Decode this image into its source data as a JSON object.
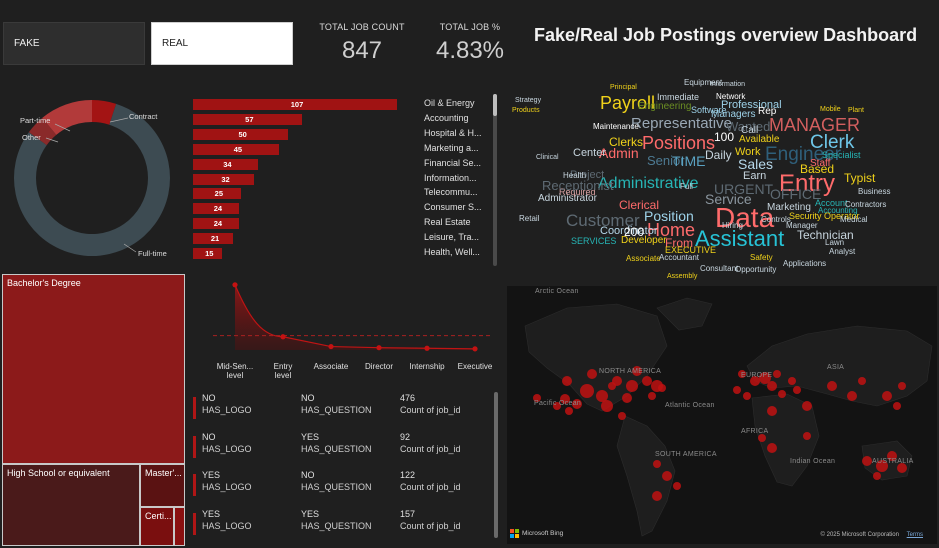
{
  "slicer": {
    "fake_label": "FAKE",
    "real_label": "REAL"
  },
  "kpis": {
    "count_title": "TOTAL JOB COUNT",
    "count_value": "847",
    "pct_title": "TOTAL JOB %",
    "pct_value": "4.83%"
  },
  "title": "Fake/Real Job Postings overview Dashboard",
  "donut": {
    "labels": {
      "part_time": "Part-time",
      "contract": "Contract",
      "other": "Other",
      "full_time": "Full-time"
    },
    "colors": {
      "full_time": "#3d4b52",
      "part_time": "#b23a3a",
      "contract": "#a31414",
      "other": "#8a2a2a"
    }
  },
  "industry_chart": {
    "chart_data": {
      "type": "bar",
      "categories": [
        "Oil & Energy",
        "Accounting",
        "Hospital & H...",
        "Marketing a...",
        "Financial Se...",
        "Information...",
        "Telecommu...",
        "Consumer S...",
        "Real Estate",
        "Leisure, Tra...",
        "Health, Well..."
      ],
      "values": [
        107,
        57,
        50,
        45,
        34,
        32,
        25,
        24,
        24,
        21,
        15
      ],
      "value_labels": [
        "107",
        "57",
        "50",
        "45",
        "34",
        "32",
        "25",
        "24",
        "24",
        "21",
        "15"
      ],
      "xlim": [
        0,
        107
      ]
    }
  },
  "treemap": {
    "bachelors": "Bachelor's Degree",
    "high_school": "High School or equivalent",
    "masters": "Master'...",
    "certification": "Certi..."
  },
  "experience_chart": {
    "chart_data": {
      "type": "area",
      "categories": [
        "Mid-Senior level",
        "Entry level",
        "Associate",
        "Director",
        "Internship",
        "Executive"
      ],
      "tick_labels": [
        "Mid-Sen...\nlevel",
        "Entry\nlevel",
        "Associate",
        "Director",
        "Internship",
        "Executive"
      ],
      "values": [
        113,
        23,
        6,
        4,
        3,
        2
      ],
      "ylim": [
        0,
        130
      ],
      "average_line": 25
    }
  },
  "logo_question_cards": [
    {
      "logo": "NO",
      "logo_caption": "HAS_LOGO",
      "question": "NO",
      "question_caption": "HAS_QUESTION",
      "count": "476",
      "count_caption": "Count of job_id"
    },
    {
      "logo": "NO",
      "logo_caption": "HAS_LOGO",
      "question": "YES",
      "question_caption": "HAS_QUESTION",
      "count": "92",
      "count_caption": "Count of job_id"
    },
    {
      "logo": "YES",
      "logo_caption": "HAS_LOGO",
      "question": "NO",
      "question_caption": "HAS_QUESTION",
      "count": "122",
      "count_caption": "Count of job_id"
    },
    {
      "logo": "YES",
      "logo_caption": "HAS_LOGO",
      "question": "YES",
      "question_caption": "HAS_QUESTION",
      "count": "157",
      "count_caption": "Count of job_id"
    }
  ],
  "wordcloud": [
    {
      "t": "Payroll",
      "c": "#f0d21a"
    },
    {
      "t": "Positions",
      "c": "#ff6b6b"
    },
    {
      "t": "Representative",
      "c": "#9aa8b5"
    },
    {
      "t": "MANAGER",
      "c": "#d35f5f"
    },
    {
      "t": "Clerk",
      "c": "#6ec6e8"
    },
    {
      "t": "Engineer",
      "c": "#2f5f7a"
    },
    {
      "t": "Entry",
      "c": "#ff6b6b"
    },
    {
      "t": "Administrative",
      "c": "#27b5b5"
    },
    {
      "t": "Data",
      "c": "#ff6b6b"
    },
    {
      "t": "Assistant",
      "c": "#27c3d6"
    },
    {
      "t": "Customer",
      "c": "#5e6a73"
    },
    {
      "t": "Home",
      "c": "#ff6b6b"
    },
    {
      "t": "Position",
      "c": "#9ed3ea"
    },
    {
      "t": "Service",
      "c": "#8a959e"
    },
    {
      "t": "Sales",
      "c": "#b7d8ea"
    },
    {
      "t": "Admin",
      "c": "#ff6b6b"
    },
    {
      "t": "Senior",
      "c": "#4d7a92"
    },
    {
      "t": "TIME",
      "c": "#5aa2c2"
    },
    {
      "t": "Clerks",
      "c": "#f0d21a"
    },
    {
      "t": "Daily",
      "c": "#c8d6df"
    },
    {
      "t": "Work",
      "c": "#f0d21a"
    },
    {
      "t": "Based",
      "c": "#f0d21a"
    },
    {
      "t": "Typist",
      "c": "#f0d21a"
    },
    {
      "t": "Earn",
      "c": "#c8d6df"
    },
    {
      "t": "Clerical",
      "c": "#ff6b6b"
    },
    {
      "t": "Technician",
      "c": "#c8d6df"
    },
    {
      "t": "Coordinator",
      "c": "#b7d8ea"
    },
    {
      "t": "200",
      "c": "#ffffff"
    },
    {
      "t": "Developer",
      "c": "#f0d21a"
    },
    {
      "t": "From",
      "c": "#ff6b6b"
    },
    {
      "t": "Administrator",
      "c": "#c8d6df"
    },
    {
      "t": "Marketing",
      "c": "#c8d6df"
    },
    {
      "t": "Account",
      "c": "#27b5b5"
    },
    {
      "t": "Security Operator",
      "c": "#f0d21a"
    },
    {
      "t": "Engineering",
      "c": "#6b8e23"
    },
    {
      "t": "Managers",
      "c": "#9ed3ea"
    },
    {
      "t": "Available",
      "c": "#f0d21a"
    },
    {
      "t": "Network",
      "c": "#ffffff"
    },
    {
      "t": "Professional",
      "c": "#9ed3ea"
    },
    {
      "t": "Wanted",
      "c": "#5e6a73"
    },
    {
      "t": "URGENT",
      "c": "#5e6a73"
    },
    {
      "t": "OFFICE",
      "c": "#5e6a73"
    },
    {
      "t": "Specialist",
      "c": "#27b5b5"
    },
    {
      "t": "Business",
      "c": "#c8d6df"
    },
    {
      "t": "Contractors",
      "c": "#c8d6df"
    },
    {
      "t": "Accounting",
      "c": "#27b5b5"
    },
    {
      "t": "Manager",
      "c": "#c8d6df"
    },
    {
      "t": "Analyst",
      "c": "#c8d6df"
    },
    {
      "t": "Applications",
      "c": "#c8d6df"
    },
    {
      "t": "Immediate",
      "c": "#c8d6df"
    },
    {
      "t": "Maintenance",
      "c": "#ffffff"
    },
    {
      "t": "Associate",
      "c": "#f0d21a"
    },
    {
      "t": "Accountant",
      "c": "#c8d6df"
    },
    {
      "t": "EXECUTIVE",
      "c": "#f0d21a"
    },
    {
      "t": "Required",
      "c": "#d9a0a0"
    },
    {
      "t": "Receptionist",
      "c": "#5e6a73"
    },
    {
      "t": "Project",
      "c": "#5e6a73"
    },
    {
      "t": "Center",
      "c": "#c8d6df"
    },
    {
      "t": "100",
      "c": "#ffffff"
    },
    {
      "t": "Call",
      "c": "#c8d6df"
    },
    {
      "t": "Rep",
      "c": "#ffffff"
    },
    {
      "t": "Staff",
      "c": "#ff6b6b"
    },
    {
      "t": "Medical",
      "c": "#c8d6df"
    },
    {
      "t": "Retail",
      "c": "#c8d6df"
    },
    {
      "t": "SERVICES",
      "c": "#27b5b5"
    },
    {
      "t": "Opportunity",
      "c": "#c8d6df"
    },
    {
      "t": "Consultant",
      "c": "#c8d6df"
    },
    {
      "t": "Lawn",
      "c": "#c8d6df"
    },
    {
      "t": "Safety",
      "c": "#f0d21a"
    },
    {
      "t": "Plant",
      "c": "#f0d21a"
    },
    {
      "t": "Mobile",
      "c": "#f0d21a"
    },
    {
      "t": "Software",
      "c": "#9ed3ea"
    },
    {
      "t": "Principal",
      "c": "#f0d21a"
    },
    {
      "t": "Equipment",
      "c": "#c8d6df"
    },
    {
      "t": "Information",
      "c": "#c8d6df"
    },
    {
      "t": "Strategy",
      "c": "#c8d6df"
    },
    {
      "t": "Products",
      "c": "#f0d21a"
    },
    {
      "t": "Clinical",
      "c": "#c8d6df"
    },
    {
      "t": "Health",
      "c": "#c8d6df"
    },
    {
      "t": "Full",
      "c": "#c8d6df"
    },
    {
      "t": "Hiring",
      "c": "#c8d6df"
    },
    {
      "t": "Controls",
      "c": "#c8d6df"
    },
    {
      "t": "Assembly",
      "c": "#f0d21a"
    }
  ],
  "map": {
    "labels": {
      "arctic": "Arctic Ocean",
      "north_america": "NORTH AMERICA",
      "europe": "EUROPE",
      "asia": "ASIA",
      "pacific": "Pacific Ocean",
      "atlantic": "Atlantic Ocean",
      "africa": "AFRICA",
      "south_america": "SOUTH AMERICA",
      "indian": "Indian Ocean",
      "australia": "AUSTRALIA"
    },
    "credit": "Microsoft Bing",
    "copyright": "© 2025 Microsoft Corporation",
    "terms": "Terms",
    "bubble_color": "#c01212"
  }
}
